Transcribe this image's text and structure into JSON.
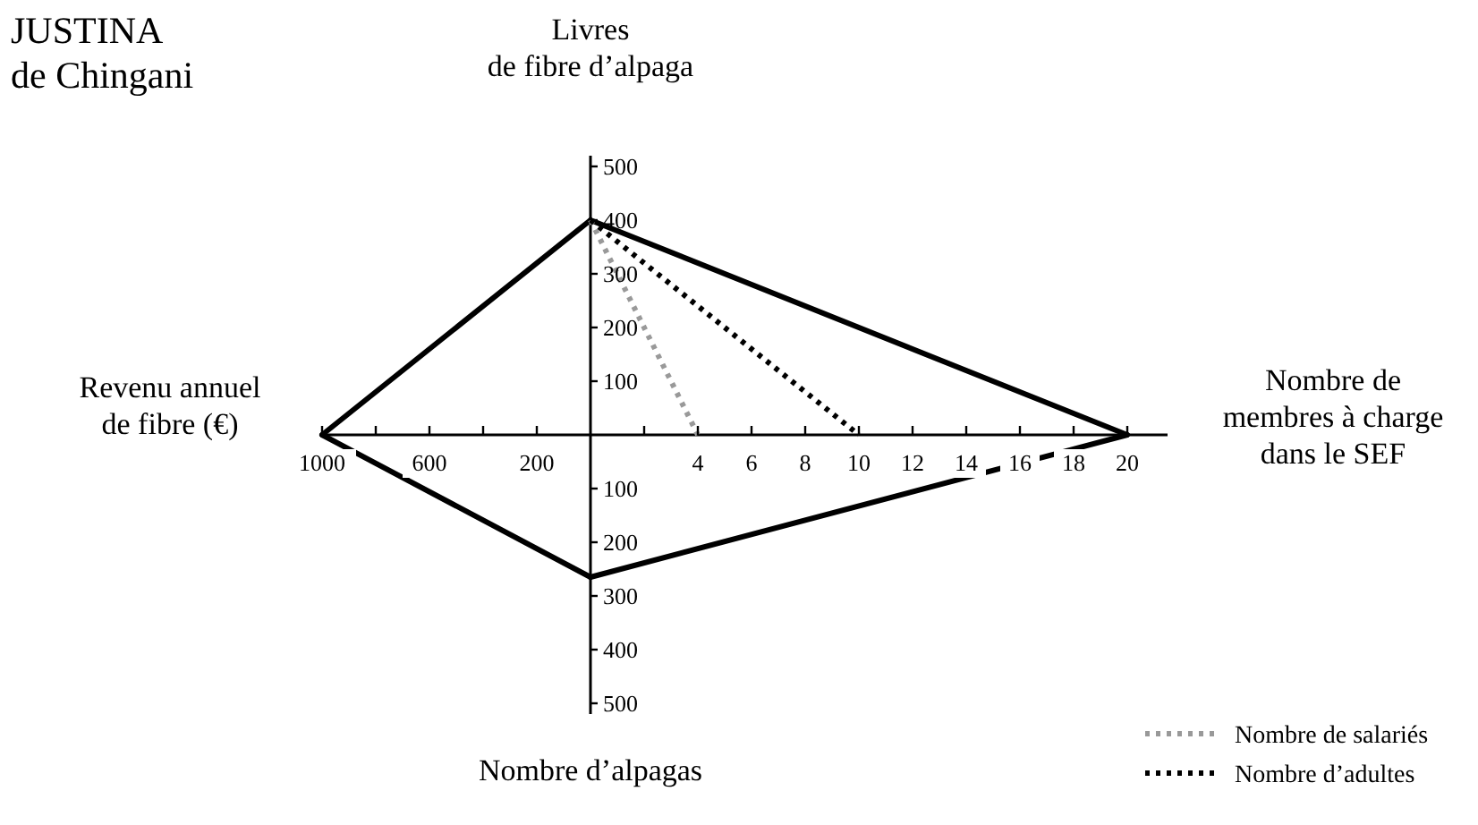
{
  "chart_data": {
    "type": "line",
    "title": "JUSTINA\nde Chingani",
    "annotations": [
      "Livres\nde fibre d’alpaga",
      "Revenu annuel\nde fibre (€)",
      "Nombre de\nmembres à charge\ndans le SEF",
      "Nombre d’alpagas"
    ],
    "xlim": [
      -10,
      21.5
    ],
    "ylim": [
      -520,
      520
    ],
    "xticks": [
      {
        "value": 2,
        "label": null
      },
      4,
      6,
      8,
      10,
      12,
      14,
      16,
      18,
      20
    ],
    "yticks": [
      100,
      200,
      300,
      400,
      500
    ],
    "x2lim": [
      1000,
      -2150
    ],
    "x2ticks": [
      1000,
      {
        "value": 800,
        "label": null
      },
      600,
      {
        "value": 400,
        "label": null
      },
      200
    ],
    "y2lim": [
      520,
      -520
    ],
    "y2ticks": [
      100,
      200,
      300,
      400,
      500
    ],
    "series": [
      {
        "color": "#000000",
        "line_style": "solid",
        "axis": "x2",
        "x": [
          0,
          1000
        ],
        "values": [
          400,
          0
        ]
      },
      {
        "color": "#000000",
        "line_style": "solid",
        "x": [
          0,
          20
        ],
        "values": [
          400,
          0
        ]
      },
      {
        "color": "#000000",
        "line_style": "solid",
        "axis": "y2",
        "x": [
          20,
          0
        ],
        "values": [
          0,
          265
        ]
      },
      {
        "color": "#000000",
        "line_style": "solid",
        "axis": "x2",
        "x": [
          0,
          1000
        ],
        "values": [
          -265,
          0
        ]
      },
      {
        "name": "Nombre de salariés",
        "color": "#999999",
        "line_style": "dotted",
        "x": [
          0,
          4
        ],
        "values": [
          400,
          0
        ]
      },
      {
        "name": "Nombre d’adultes",
        "color": "#000000",
        "line_style": "dotted",
        "x": [
          0,
          10
        ],
        "values": [
          400,
          0
        ]
      }
    ],
    "legend": "bottom right",
    "grid": false
  }
}
